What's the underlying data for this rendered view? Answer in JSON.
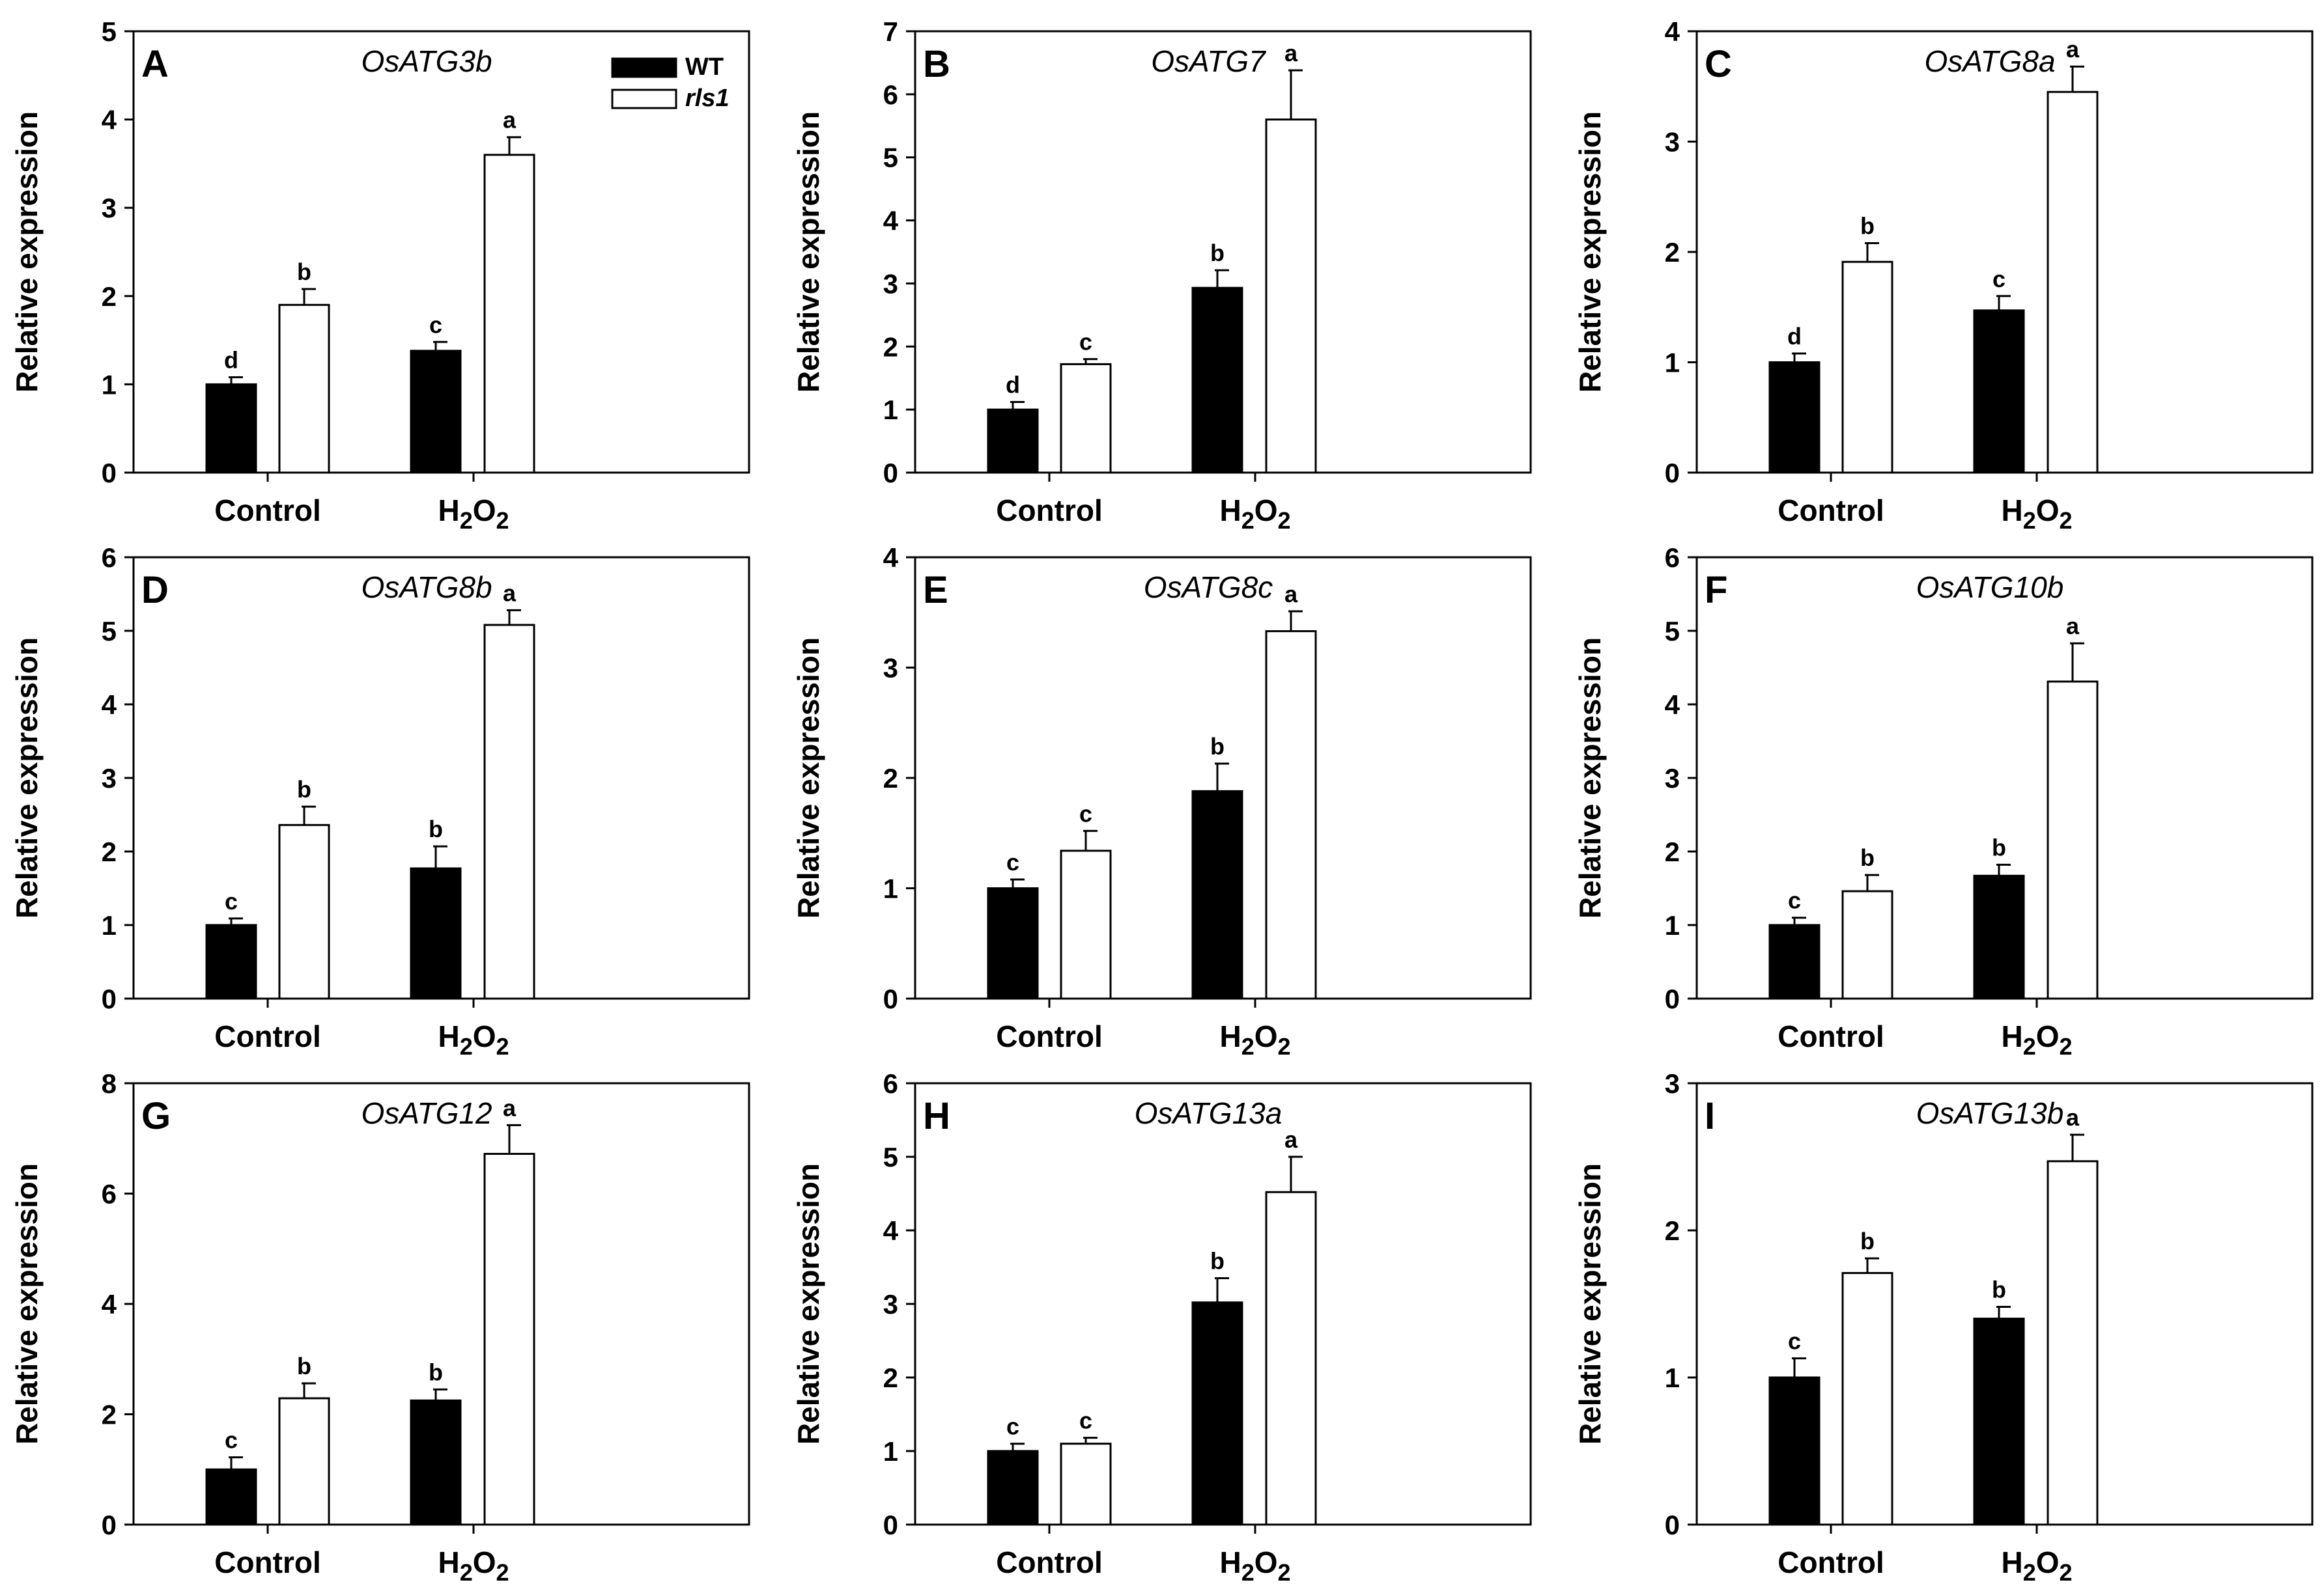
{
  "figure": {
    "ylabel": "Relative expression",
    "categories": [
      "Control",
      "H2O2"
    ],
    "legend": [
      "WT",
      "rls1"
    ],
    "colors": {
      "wt": "#000000",
      "rls1": "#ffffff",
      "axis": "#000000"
    }
  },
  "chart_data": [
    {
      "type": "bar",
      "panel": "A",
      "title": "OsATG3b",
      "show_legend": true,
      "xlabel": "",
      "ylabel": "Relative expression",
      "ylim": [
        0,
        5
      ],
      "yticks": [
        0,
        1,
        2,
        3,
        4,
        5
      ],
      "categories": [
        "Control",
        "H2O2"
      ],
      "series": [
        {
          "name": "WT",
          "values": [
            1.0,
            1.38
          ],
          "errors": [
            0.08,
            0.1
          ],
          "letters": [
            "d",
            "c"
          ]
        },
        {
          "name": "rls1",
          "values": [
            1.9,
            3.6
          ],
          "errors": [
            0.18,
            0.2
          ],
          "letters": [
            "b",
            "a"
          ]
        }
      ]
    },
    {
      "type": "bar",
      "panel": "B",
      "title": "OsATG7",
      "show_legend": false,
      "xlabel": "",
      "ylabel": "Relative expression",
      "ylim": [
        0,
        7
      ],
      "yticks": [
        0,
        1,
        2,
        3,
        4,
        5,
        6,
        7
      ],
      "categories": [
        "Control",
        "H2O2"
      ],
      "series": [
        {
          "name": "WT",
          "values": [
            1.0,
            2.93
          ],
          "errors": [
            0.12,
            0.28
          ],
          "letters": [
            "d",
            "b"
          ]
        },
        {
          "name": "rls1",
          "values": [
            1.72,
            5.6
          ],
          "errors": [
            0.08,
            0.78
          ],
          "letters": [
            "c",
            "a"
          ]
        }
      ]
    },
    {
      "type": "bar",
      "panel": "C",
      "title": "OsATG8a",
      "show_legend": false,
      "xlabel": "",
      "ylabel": "Relative expression",
      "ylim": [
        0,
        4
      ],
      "yticks": [
        0,
        1,
        2,
        3,
        4
      ],
      "categories": [
        "Control",
        "H2O2"
      ],
      "series": [
        {
          "name": "WT",
          "values": [
            1.0,
            1.47
          ],
          "errors": [
            0.08,
            0.13
          ],
          "letters": [
            "d",
            "c"
          ]
        },
        {
          "name": "rls1",
          "values": [
            1.91,
            3.45
          ],
          "errors": [
            0.17,
            0.23
          ],
          "letters": [
            "b",
            "a"
          ]
        }
      ]
    },
    {
      "type": "bar",
      "panel": "D",
      "title": "OsATG8b",
      "show_legend": false,
      "xlabel": "",
      "ylabel": "Relative expression",
      "ylim": [
        0,
        6
      ],
      "yticks": [
        0,
        1,
        2,
        3,
        4,
        5,
        6
      ],
      "categories": [
        "Control",
        "H2O2"
      ],
      "series": [
        {
          "name": "WT",
          "values": [
            1.0,
            1.77
          ],
          "errors": [
            0.09,
            0.3
          ],
          "letters": [
            "c",
            "b"
          ]
        },
        {
          "name": "rls1",
          "values": [
            2.36,
            5.08
          ],
          "errors": [
            0.25,
            0.2
          ],
          "letters": [
            "b",
            "a"
          ]
        }
      ]
    },
    {
      "type": "bar",
      "panel": "E",
      "title": "OsATG8c",
      "show_legend": false,
      "xlabel": "",
      "ylabel": "Relative expression",
      "ylim": [
        0,
        4
      ],
      "yticks": [
        0,
        1,
        2,
        3,
        4
      ],
      "categories": [
        "Control",
        "H2O2"
      ],
      "series": [
        {
          "name": "WT",
          "values": [
            1.0,
            1.88
          ],
          "errors": [
            0.08,
            0.25
          ],
          "letters": [
            "c",
            "b"
          ]
        },
        {
          "name": "rls1",
          "values": [
            1.34,
            3.33
          ],
          "errors": [
            0.18,
            0.18
          ],
          "letters": [
            "c",
            "a"
          ]
        }
      ]
    },
    {
      "type": "bar",
      "panel": "F",
      "title": "OsATG10b",
      "show_legend": false,
      "xlabel": "",
      "ylabel": "Relative expression",
      "ylim": [
        0,
        6
      ],
      "yticks": [
        0,
        1,
        2,
        3,
        4,
        5,
        6
      ],
      "categories": [
        "Control",
        "H2O2"
      ],
      "series": [
        {
          "name": "WT",
          "values": [
            1.0,
            1.67
          ],
          "errors": [
            0.1,
            0.15
          ],
          "letters": [
            "c",
            "b"
          ]
        },
        {
          "name": "rls1",
          "values": [
            1.46,
            4.31
          ],
          "errors": [
            0.22,
            0.52
          ],
          "letters": [
            "b",
            "a"
          ]
        }
      ]
    },
    {
      "type": "bar",
      "panel": "G",
      "title": "OsATG12",
      "show_legend": false,
      "xlabel": "",
      "ylabel": "Relative expression",
      "ylim": [
        0,
        8
      ],
      "yticks": [
        0,
        2,
        4,
        6,
        8
      ],
      "categories": [
        "Control",
        "H2O2"
      ],
      "series": [
        {
          "name": "WT",
          "values": [
            1.0,
            2.25
          ],
          "errors": [
            0.22,
            0.2
          ],
          "letters": [
            "c",
            "b"
          ]
        },
        {
          "name": "rls1",
          "values": [
            2.29,
            6.72
          ],
          "errors": [
            0.27,
            0.52
          ],
          "letters": [
            "b",
            "a"
          ]
        }
      ]
    },
    {
      "type": "bar",
      "panel": "H",
      "title": "OsATG13a",
      "show_legend": false,
      "xlabel": "",
      "ylabel": "Relative expression",
      "ylim": [
        0,
        6
      ],
      "yticks": [
        0,
        1,
        2,
        3,
        4,
        5,
        6
      ],
      "categories": [
        "Control",
        "H2O2"
      ],
      "series": [
        {
          "name": "WT",
          "values": [
            1.0,
            3.02
          ],
          "errors": [
            0.1,
            0.33
          ],
          "letters": [
            "c",
            "b"
          ]
        },
        {
          "name": "rls1",
          "values": [
            1.1,
            4.52
          ],
          "errors": [
            0.08,
            0.48
          ],
          "letters": [
            "c",
            "a"
          ]
        }
      ]
    },
    {
      "type": "bar",
      "panel": "I",
      "title": "OsATG13b",
      "show_legend": false,
      "xlabel": "",
      "ylabel": "Relative expression",
      "ylim": [
        0,
        3
      ],
      "yticks": [
        0,
        1,
        2,
        3
      ],
      "categories": [
        "Control",
        "H2O2"
      ],
      "series": [
        {
          "name": "WT",
          "values": [
            1.0,
            1.4
          ],
          "errors": [
            0.13,
            0.08
          ],
          "letters": [
            "c",
            "b"
          ]
        },
        {
          "name": "rls1",
          "values": [
            1.71,
            2.47
          ],
          "errors": [
            0.1,
            0.18
          ],
          "letters": [
            "b",
            "a"
          ]
        }
      ]
    }
  ]
}
